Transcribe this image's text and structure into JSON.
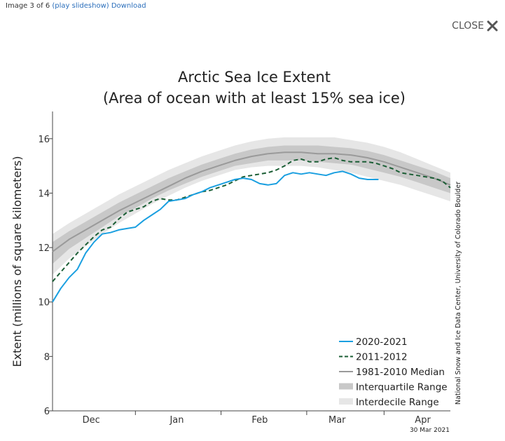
{
  "viewer": {
    "image_counter": "Image 3 of 6",
    "play_slideshow_label": "(play slideshow)",
    "download_label": "Download",
    "close_label": "CLOSE",
    "close_icon": "close-x-icon"
  },
  "chart_data": {
    "type": "line",
    "title": "Arctic Sea Ice Extent",
    "subtitle": "(Area of ocean with at least 15% sea ice)",
    "ylabel": "Extent (millions of square kilometers)",
    "xlabel": "",
    "ylim": [
      6,
      17
    ],
    "xlim": [
      0,
      144
    ],
    "yticks": [
      6,
      8,
      10,
      12,
      14,
      16
    ],
    "xticks": [
      {
        "label": "Dec",
        "day": 14
      },
      {
        "label": "Jan",
        "day": 45
      },
      {
        "label": "Feb",
        "day": 75
      },
      {
        "label": "Mar",
        "day": 103
      },
      {
        "label": "Apr",
        "day": 134
      }
    ],
    "month_boundaries": [
      30,
      61,
      92,
      120
    ],
    "credit": "National Snow and Ice Data Center, University of Colorado Boulder",
    "date_stamp": "30 Mar 2021",
    "grid": false,
    "legend_position": "bottom-right",
    "colors": {
      "series_2020_2021": "#1a9fe0",
      "series_2011_2012": "#1b5e35",
      "median": "#9a9a9a",
      "interquartile": "#c8c8c8",
      "interdecile": "#e6e6e6"
    },
    "legend": [
      {
        "label": "2020-2021",
        "key": "s2020"
      },
      {
        "label": "2011-2012",
        "key": "s2011"
      },
      {
        "label": "1981-2010 Median",
        "key": "median"
      },
      {
        "label": "Interquartile Range",
        "key": "iqr"
      },
      {
        "label": "Interdecile Range",
        "key": "idr"
      }
    ],
    "series": [
      {
        "name": "2020-2021",
        "key": "s2020",
        "x": [
          0,
          3,
          6,
          9,
          12,
          15,
          18,
          21,
          24,
          27,
          30,
          33,
          36,
          39,
          42,
          45,
          48,
          51,
          54,
          57,
          60,
          63,
          66,
          69,
          72,
          75,
          78,
          81,
          84,
          87,
          90,
          93,
          96,
          99,
          102,
          105,
          108,
          111,
          114,
          117,
          118
        ],
        "y": [
          10.0,
          10.5,
          10.9,
          11.2,
          11.8,
          12.2,
          12.5,
          12.55,
          12.65,
          12.7,
          12.75,
          13.0,
          13.2,
          13.4,
          13.7,
          13.75,
          13.8,
          13.95,
          14.05,
          14.2,
          14.3,
          14.4,
          14.5,
          14.55,
          14.5,
          14.35,
          14.3,
          14.35,
          14.65,
          14.75,
          14.7,
          14.75,
          14.7,
          14.65,
          14.75,
          14.8,
          14.7,
          14.55,
          14.5,
          14.5,
          14.5
        ]
      },
      {
        "name": "2011-2012",
        "key": "s2011",
        "x": [
          0,
          3,
          6,
          9,
          12,
          15,
          18,
          21,
          24,
          27,
          30,
          33,
          36,
          39,
          42,
          45,
          48,
          51,
          54,
          57,
          60,
          63,
          66,
          69,
          72,
          75,
          78,
          81,
          84,
          87,
          90,
          93,
          96,
          99,
          102,
          105,
          108,
          111,
          114,
          117,
          120,
          123,
          126,
          129,
          132,
          135,
          138,
          141,
          144
        ],
        "y": [
          10.75,
          11.1,
          11.45,
          11.8,
          12.1,
          12.4,
          12.65,
          12.75,
          13.05,
          13.3,
          13.4,
          13.5,
          13.7,
          13.8,
          13.75,
          13.75,
          13.85,
          13.95,
          14.05,
          14.1,
          14.2,
          14.3,
          14.45,
          14.6,
          14.65,
          14.7,
          14.75,
          14.85,
          15.0,
          15.2,
          15.25,
          15.15,
          15.15,
          15.25,
          15.3,
          15.2,
          15.15,
          15.15,
          15.15,
          15.1,
          15.0,
          14.9,
          14.75,
          14.7,
          14.65,
          14.6,
          14.55,
          14.45,
          14.2
        ]
      },
      {
        "name": "1981-2010 Median",
        "key": "median",
        "x": [
          0,
          6,
          12,
          18,
          24,
          30,
          36,
          42,
          48,
          54,
          60,
          66,
          72,
          78,
          84,
          90,
          96,
          102,
          108,
          114,
          120,
          126,
          132,
          138,
          144
        ],
        "y": [
          11.85,
          12.3,
          12.65,
          13.0,
          13.35,
          13.65,
          13.95,
          14.25,
          14.55,
          14.8,
          15.0,
          15.2,
          15.35,
          15.45,
          15.5,
          15.5,
          15.45,
          15.45,
          15.4,
          15.3,
          15.15,
          14.95,
          14.75,
          14.55,
          14.3
        ]
      }
    ],
    "bands": [
      {
        "name": "Interdecile Range",
        "key": "idr",
        "x": [
          0,
          6,
          12,
          18,
          24,
          30,
          36,
          42,
          48,
          54,
          60,
          66,
          72,
          78,
          84,
          90,
          96,
          102,
          108,
          114,
          120,
          126,
          132,
          138,
          144
        ],
        "low": [
          11.0,
          11.6,
          12.05,
          12.5,
          12.9,
          13.25,
          13.6,
          13.9,
          14.2,
          14.45,
          14.65,
          14.85,
          14.95,
          15.0,
          15.0,
          15.0,
          14.95,
          14.85,
          14.75,
          14.6,
          14.45,
          14.3,
          14.1,
          13.9,
          13.7
        ],
        "high": [
          12.5,
          12.9,
          13.25,
          13.6,
          13.95,
          14.25,
          14.55,
          14.85,
          15.1,
          15.35,
          15.55,
          15.75,
          15.9,
          16.0,
          16.05,
          16.05,
          16.05,
          16.05,
          15.95,
          15.85,
          15.7,
          15.5,
          15.25,
          15.0,
          14.75
        ]
      },
      {
        "name": "Interquartile Range",
        "key": "iqr",
        "x": [
          0,
          6,
          12,
          18,
          24,
          30,
          36,
          42,
          48,
          54,
          60,
          66,
          72,
          78,
          84,
          90,
          96,
          102,
          108,
          114,
          120,
          126,
          132,
          138,
          144
        ],
        "low": [
          11.4,
          11.95,
          12.35,
          12.75,
          13.15,
          13.45,
          13.8,
          14.1,
          14.35,
          14.6,
          14.8,
          15.0,
          15.1,
          15.2,
          15.2,
          15.2,
          15.15,
          15.1,
          15.05,
          14.9,
          14.75,
          14.6,
          14.4,
          14.2,
          14.0
        ],
        "high": [
          12.2,
          12.6,
          12.95,
          13.3,
          13.65,
          13.95,
          14.25,
          14.55,
          14.8,
          15.05,
          15.25,
          15.45,
          15.6,
          15.7,
          15.75,
          15.75,
          15.75,
          15.7,
          15.65,
          15.55,
          15.4,
          15.2,
          15.0,
          14.8,
          14.55
        ]
      }
    ]
  }
}
